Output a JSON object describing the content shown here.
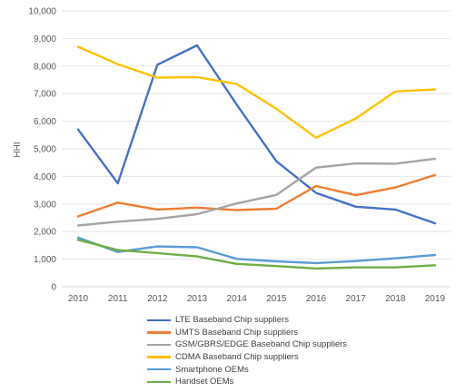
{
  "chart_data": {
    "type": "line",
    "title": "",
    "xlabel": "",
    "ylabel": "HHI",
    "ylim": [
      0,
      10000
    ],
    "yticks": [
      "0",
      "1,000",
      "2,000",
      "3,000",
      "4,000",
      "5,000",
      "6,000",
      "7,000",
      "8,000",
      "9,000",
      "10,000"
    ],
    "categories": [
      "2010",
      "2011",
      "2012",
      "2013",
      "2014",
      "2015",
      "2016",
      "2017",
      "2018",
      "2019"
    ],
    "grid": "horizontal",
    "legend_position": "bottom",
    "series": [
      {
        "name": "LTE Baseband Chip suppliers",
        "color": "#4472C4",
        "values": [
          5700,
          3750,
          8050,
          8750,
          6600,
          4550,
          3400,
          2900,
          2800,
          2300
        ]
      },
      {
        "name": "UMTS Baseband Chip suppliers",
        "color": "#ED7D31",
        "values": [
          2550,
          3050,
          2800,
          2870,
          2780,
          2830,
          3650,
          3320,
          3600,
          4050
        ]
      },
      {
        "name": "GSM/GBRS/EDGE Baseband Chip suppliers",
        "color": "#A5A5A5",
        "values": [
          2220,
          2360,
          2460,
          2630,
          3020,
          3330,
          4320,
          4470,
          4460,
          4640
        ]
      },
      {
        "name": "CDMA Baseband Chip suppliers",
        "color": "#FFC000",
        "values": [
          8700,
          8070,
          7580,
          7600,
          7350,
          6450,
          5400,
          6100,
          7080,
          7150
        ]
      },
      {
        "name": "Smartphone OEMs",
        "color": "#5B9BD5",
        "values": [
          1780,
          1260,
          1460,
          1430,
          1010,
          920,
          860,
          930,
          1030,
          1150
        ]
      },
      {
        "name": "Handset OEMs",
        "color": "#70AD47",
        "values": [
          1700,
          1330,
          1220,
          1100,
          830,
          750,
          660,
          700,
          700,
          780
        ]
      }
    ]
  }
}
